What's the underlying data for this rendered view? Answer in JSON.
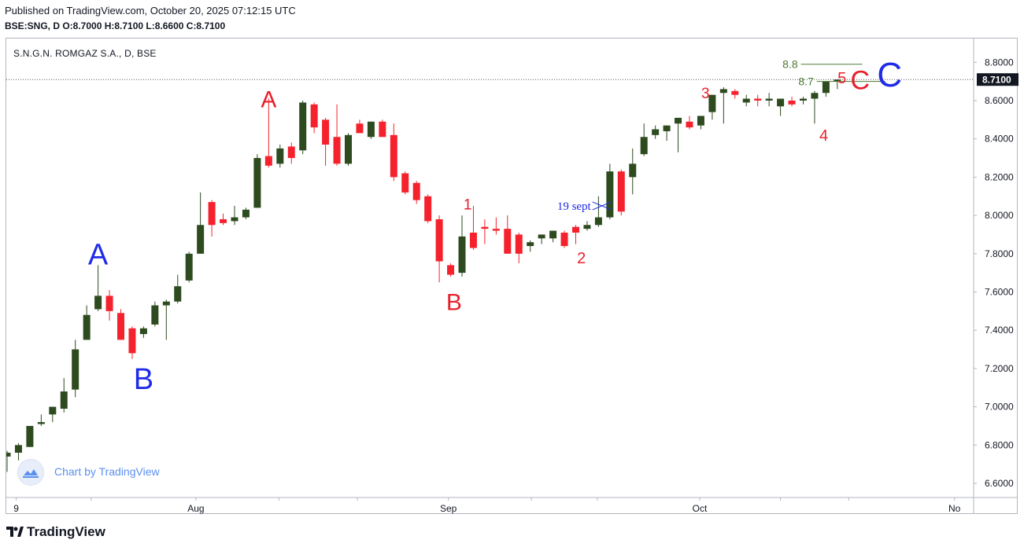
{
  "header": {
    "published": "Published on TradingView.com, October 20, 2025 07:12:15 UTC",
    "ohlc": "BSE:SNG, D  O:8.7000 H:8.7100 L:8.6600 C:8.7100"
  },
  "legend": {
    "title": "S.N.G.N. ROMGAZ S.A., D, BSE"
  },
  "footer": {
    "brand": "TradingView",
    "badge_text": "Chart by TradingView"
  },
  "colors": {
    "up": "#2d4b1f",
    "down": "#f5222d",
    "blue": "#1f2be8",
    "red": "#e8202a",
    "green_line": "#4e7a33",
    "price_tag": "#131722"
  },
  "chart_data": {
    "type": "candlestick",
    "symbol": "BSE:SNG",
    "interval": "D",
    "ylim": [
      6.56,
      8.9
    ],
    "y_ticks": [
      6.6,
      6.8,
      7.0,
      7.2,
      7.4,
      7.6,
      7.8,
      8.0,
      8.2,
      8.4,
      8.6,
      8.8
    ],
    "y_tick_labels": [
      "6.6000",
      "6.8000",
      "7.0000",
      "7.2000",
      "7.4000",
      "7.6000",
      "7.8000",
      "8.0000",
      "8.2000",
      "8.4000",
      "8.6000",
      "8.8000"
    ],
    "last_price": 8.71,
    "last_price_label": "8.7100",
    "x_labels": [
      {
        "label": "9",
        "index": 0.8
      },
      {
        "label": "Aug",
        "index": 16.6
      },
      {
        "label": "Sep",
        "index": 38.8
      },
      {
        "label": "Oct",
        "index": 60.9
      },
      {
        "label": "No",
        "index": 83.3
      }
    ],
    "candles": [
      {
        "o": 6.74,
        "h": 6.77,
        "l": 6.66,
        "c": 6.76
      },
      {
        "o": 6.76,
        "h": 6.81,
        "l": 6.72,
        "c": 6.8
      },
      {
        "o": 6.79,
        "h": 6.9,
        "l": 6.79,
        "c": 6.9
      },
      {
        "o": 6.91,
        "h": 6.96,
        "l": 6.9,
        "c": 6.92
      },
      {
        "o": 6.96,
        "h": 7.0,
        "l": 6.92,
        "c": 7.0
      },
      {
        "o": 6.99,
        "h": 7.15,
        "l": 6.97,
        "c": 7.08
      },
      {
        "o": 7.09,
        "h": 7.35,
        "l": 7.05,
        "c": 7.3
      },
      {
        "o": 7.35,
        "h": 7.53,
        "l": 7.35,
        "c": 7.48
      },
      {
        "o": 7.51,
        "h": 7.74,
        "l": 7.5,
        "c": 7.58
      },
      {
        "o": 7.58,
        "h": 7.61,
        "l": 7.45,
        "c": 7.5
      },
      {
        "o": 7.49,
        "h": 7.51,
        "l": 7.35,
        "c": 7.35
      },
      {
        "o": 7.41,
        "h": 7.42,
        "l": 7.25,
        "c": 7.28
      },
      {
        "o": 7.38,
        "h": 7.42,
        "l": 7.36,
        "c": 7.41
      },
      {
        "o": 7.43,
        "h": 7.55,
        "l": 7.42,
        "c": 7.53
      },
      {
        "o": 7.53,
        "h": 7.56,
        "l": 7.35,
        "c": 7.55
      },
      {
        "o": 7.55,
        "h": 7.69,
        "l": 7.54,
        "c": 7.63
      },
      {
        "o": 7.66,
        "h": 7.81,
        "l": 7.65,
        "c": 7.8
      },
      {
        "o": 7.8,
        "h": 8.12,
        "l": 7.8,
        "c": 7.95
      },
      {
        "o": 8.07,
        "h": 8.08,
        "l": 7.89,
        "c": 7.95
      },
      {
        "o": 7.98,
        "h": 8.01,
        "l": 7.95,
        "c": 7.96
      },
      {
        "o": 7.97,
        "h": 8.05,
        "l": 7.95,
        "c": 7.99
      },
      {
        "o": 7.99,
        "h": 8.04,
        "l": 7.98,
        "c": 8.03
      },
      {
        "o": 8.04,
        "h": 8.32,
        "l": 8.04,
        "c": 8.3
      },
      {
        "o": 8.31,
        "h": 8.61,
        "l": 8.25,
        "c": 8.26
      },
      {
        "o": 8.27,
        "h": 8.37,
        "l": 8.25,
        "c": 8.35
      },
      {
        "o": 8.36,
        "h": 8.38,
        "l": 8.27,
        "c": 8.3
      },
      {
        "o": 8.34,
        "h": 8.6,
        "l": 8.32,
        "c": 8.59
      },
      {
        "o": 8.58,
        "h": 8.59,
        "l": 8.43,
        "c": 8.46
      },
      {
        "o": 8.5,
        "h": 8.51,
        "l": 8.26,
        "c": 8.37
      },
      {
        "o": 8.41,
        "h": 8.58,
        "l": 8.26,
        "c": 8.27
      },
      {
        "o": 8.27,
        "h": 8.43,
        "l": 8.26,
        "c": 8.42
      },
      {
        "o": 8.48,
        "h": 8.5,
        "l": 8.44,
        "c": 8.43
      },
      {
        "o": 8.41,
        "h": 8.49,
        "l": 8.4,
        "c": 8.49
      },
      {
        "o": 8.49,
        "h": 8.5,
        "l": 8.41,
        "c": 8.41
      },
      {
        "o": 8.42,
        "h": 8.48,
        "l": 8.18,
        "c": 8.2
      },
      {
        "o": 8.22,
        "h": 8.23,
        "l": 8.11,
        "c": 8.12
      },
      {
        "o": 8.17,
        "h": 8.18,
        "l": 8.06,
        "c": 8.08
      },
      {
        "o": 8.1,
        "h": 8.11,
        "l": 7.96,
        "c": 7.97
      },
      {
        "o": 7.98,
        "h": 8.0,
        "l": 7.65,
        "c": 7.76
      },
      {
        "o": 7.74,
        "h": 7.75,
        "l": 7.68,
        "c": 7.69
      },
      {
        "o": 7.7,
        "h": 8.0,
        "l": 7.68,
        "c": 7.89
      },
      {
        "o": 7.91,
        "h": 8.05,
        "l": 7.82,
        "c": 7.83
      },
      {
        "o": 7.94,
        "h": 7.98,
        "l": 7.85,
        "c": 7.93
      },
      {
        "o": 7.93,
        "h": 7.99,
        "l": 7.9,
        "c": 7.92
      },
      {
        "o": 7.93,
        "h": 8.0,
        "l": 7.8,
        "c": 7.8
      },
      {
        "o": 7.9,
        "h": 7.91,
        "l": 7.75,
        "c": 7.8
      },
      {
        "o": 7.84,
        "h": 7.87,
        "l": 7.81,
        "c": 7.86
      },
      {
        "o": 7.88,
        "h": 7.9,
        "l": 7.85,
        "c": 7.9
      },
      {
        "o": 7.88,
        "h": 7.92,
        "l": 7.86,
        "c": 7.92
      },
      {
        "o": 7.91,
        "h": 7.92,
        "l": 7.83,
        "c": 7.84
      },
      {
        "o": 7.94,
        "h": 7.95,
        "l": 7.85,
        "c": 7.91
      },
      {
        "o": 7.93,
        "h": 7.97,
        "l": 7.92,
        "c": 7.95
      },
      {
        "o": 7.95,
        "h": 8.1,
        "l": 7.94,
        "c": 7.99
      },
      {
        "o": 7.99,
        "h": 8.27,
        "l": 7.98,
        "c": 8.23
      },
      {
        "o": 8.23,
        "h": 8.24,
        "l": 8.0,
        "c": 8.02
      },
      {
        "o": 8.2,
        "h": 8.35,
        "l": 8.11,
        "c": 8.27
      },
      {
        "o": 8.32,
        "h": 8.48,
        "l": 8.31,
        "c": 8.41
      },
      {
        "o": 8.42,
        "h": 8.47,
        "l": 8.4,
        "c": 8.45
      },
      {
        "o": 8.44,
        "h": 8.47,
        "l": 8.39,
        "c": 8.47
      },
      {
        "o": 8.48,
        "h": 8.51,
        "l": 8.33,
        "c": 8.51
      },
      {
        "o": 8.49,
        "h": 8.52,
        "l": 8.45,
        "c": 8.46
      },
      {
        "o": 8.47,
        "h": 8.52,
        "l": 8.45,
        "c": 8.52
      },
      {
        "o": 8.54,
        "h": 8.63,
        "l": 8.5,
        "c": 8.63
      },
      {
        "o": 8.64,
        "h": 8.67,
        "l": 8.48,
        "c": 8.66
      },
      {
        "o": 8.65,
        "h": 8.66,
        "l": 8.61,
        "c": 8.63
      },
      {
        "o": 8.59,
        "h": 8.63,
        "l": 8.57,
        "c": 8.61
      },
      {
        "o": 8.61,
        "h": 8.63,
        "l": 8.57,
        "c": 8.6
      },
      {
        "o": 8.6,
        "h": 8.64,
        "l": 8.57,
        "c": 8.61
      },
      {
        "o": 8.57,
        "h": 8.61,
        "l": 8.52,
        "c": 8.61
      },
      {
        "o": 8.6,
        "h": 8.62,
        "l": 8.57,
        "c": 8.58
      },
      {
        "o": 8.6,
        "h": 8.62,
        "l": 8.58,
        "c": 8.61
      },
      {
        "o": 8.61,
        "h": 8.65,
        "l": 8.48,
        "c": 8.64
      },
      {
        "o": 8.64,
        "h": 8.7,
        "l": 8.62,
        "c": 8.7
      },
      {
        "o": 8.7,
        "h": 8.71,
        "l": 8.66,
        "c": 8.71
      }
    ],
    "annotations": [
      {
        "text": "A",
        "color": "blue",
        "index": 8.0,
        "price": 7.8,
        "size": 38
      },
      {
        "text": "B",
        "color": "blue",
        "index": 12.0,
        "price": 7.15,
        "size": 38
      },
      {
        "text": "A",
        "color": "red",
        "index": 23.0,
        "price": 8.61,
        "size": 30
      },
      {
        "text": "B",
        "color": "red",
        "index": 39.3,
        "price": 7.55,
        "size": 30
      },
      {
        "text": "1",
        "color": "red",
        "index": 40.5,
        "price": 8.06,
        "size": 19
      },
      {
        "text": "2",
        "color": "red",
        "index": 50.5,
        "price": 7.78,
        "size": 20
      },
      {
        "text": "3",
        "color": "red",
        "index": 61.4,
        "price": 8.64,
        "size": 19
      },
      {
        "text": "4",
        "color": "red",
        "index": 71.8,
        "price": 8.42,
        "size": 20
      },
      {
        "text": "5",
        "color": "red",
        "index": 73.4,
        "price": 8.72,
        "size": 20
      },
      {
        "text": "C",
        "color": "red",
        "index": 75.0,
        "price": 8.71,
        "size": 34
      },
      {
        "text": "C",
        "color": "blue",
        "index": 77.6,
        "price": 8.74,
        "size": 44
      }
    ],
    "event_marker": {
      "label": "19 sept",
      "index": 52.3,
      "price": 8.05
    },
    "levels": [
      {
        "label": "8.8",
        "value": 8.79,
        "from_index": 69.8,
        "to_index": 75.2
      },
      {
        "label": "8.7",
        "value": 8.7,
        "from_index": 71.2,
        "to_index": 77.2
      }
    ]
  }
}
